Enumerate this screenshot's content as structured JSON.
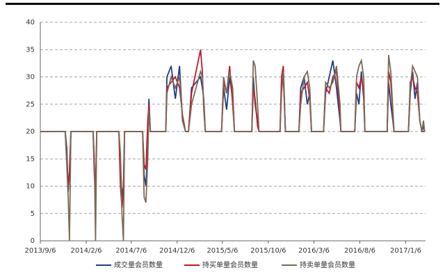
{
  "chart_data": {
    "type": "line",
    "x": [
      "2013/9/6",
      "2013/11/28",
      "2013/12/3",
      "2013/12/8",
      "2013/12/12",
      "2013/12/17",
      "2014/3/1",
      "2014/3/5",
      "2014/3/9",
      "2014/3/13",
      "2014/5/26",
      "2014/5/31",
      "2014/6/5",
      "2014/6/10",
      "2014/6/14",
      "2014/8/13",
      "2014/8/18",
      "2014/8/24",
      "2014/8/30",
      "2014/9/3",
      "2014/9/8",
      "2014/10/29",
      "2014/11/2",
      "2014/11/16",
      "2014/11/30",
      "2014/12/14",
      "2014/12/24",
      "2015/1/3",
      "2015/1/13",
      "2015/1/23",
      "2015/2/22",
      "2015/2/28",
      "2015/3/5",
      "2015/3/10",
      "2015/5/3",
      "2015/5/10",
      "2015/5/20",
      "2015/5/30",
      "2015/6/9",
      "2015/6/15",
      "2015/8/12",
      "2015/8/17",
      "2015/8/23",
      "2015/8/31",
      "2015/9/5",
      "2015/11/14",
      "2015/11/19",
      "2015/11/25",
      "2015/12/2",
      "2016/1/16",
      "2016/1/22",
      "2016/2/2",
      "2016/2/13",
      "2016/2/21",
      "2016/2/27",
      "2016/4/7",
      "2016/4/14",
      "2016/4/26",
      "2016/5/8",
      "2016/5/20",
      "2016/6/1",
      "2016/6/4",
      "2016/7/20",
      "2016/7/26",
      "2016/8/3",
      "2016/8/11",
      "2016/8/19",
      "2016/8/23",
      "2016/11/5",
      "2016/11/10",
      "2016/11/17",
      "2016/11/24",
      "2016/11/28",
      "2017/1/15",
      "2017/1/21",
      "2017/1/29",
      "2017/2/6",
      "2017/2/14",
      "2017/2/22",
      "2017/3/1",
      "2017/3/6",
      "2017/3/10"
    ],
    "series": [
      {
        "name": "成交量会员数量",
        "color": "#1f3f7f",
        "values": [
          20,
          20,
          17,
          9,
          13,
          20,
          20,
          14,
          7,
          20,
          20,
          14,
          8,
          10,
          20,
          20,
          12,
          10,
          18,
          26,
          20,
          20,
          30,
          32,
          26,
          32,
          22,
          20,
          20,
          28,
          30,
          28,
          26,
          20,
          20,
          28,
          24,
          30,
          26,
          20,
          20,
          30,
          25,
          22,
          20,
          20,
          28,
          30,
          20,
          20,
          28,
          30,
          25,
          27,
          20,
          20,
          27,
          30,
          33,
          28,
          22,
          20,
          20,
          27,
          25,
          31,
          26,
          20,
          20,
          29,
          25,
          22,
          20,
          20,
          27,
          31,
          26,
          29,
          22,
          20,
          21,
          20
        ]
      },
      {
        "name": "持买单量会员数量",
        "color": "#c0182c",
        "values": [
          20,
          20,
          15,
          10,
          12,
          20,
          20,
          12,
          8,
          20,
          20,
          10,
          6,
          9,
          20,
          20,
          14,
          13,
          22,
          25,
          20,
          20,
          28,
          29,
          30,
          28,
          23,
          20,
          20,
          27,
          35,
          31,
          24,
          20,
          20,
          29,
          27,
          32,
          25,
          20,
          20,
          28,
          26,
          21,
          20,
          20,
          30,
          32,
          20,
          20,
          27,
          28,
          29,
          26,
          20,
          20,
          28,
          27,
          30,
          31,
          23,
          20,
          20,
          29,
          28,
          30,
          27,
          20,
          20,
          31,
          29,
          23,
          20,
          20,
          29,
          30,
          28,
          27,
          22,
          20,
          20,
          20
        ]
      },
      {
        "name": "持卖单量会员数量",
        "color": "#7a6a55",
        "values": [
          20,
          20,
          14,
          8,
          0,
          20,
          20,
          15,
          0,
          20,
          20,
          16,
          5,
          0,
          20,
          20,
          8,
          7,
          15,
          24,
          20,
          20,
          27,
          30,
          28,
          30,
          22,
          20,
          20,
          25,
          31,
          30,
          25,
          20,
          20,
          30,
          27,
          31,
          28,
          20,
          20,
          33,
          32,
          25,
          20,
          20,
          27,
          31,
          20,
          20,
          25,
          30,
          31,
          28,
          20,
          20,
          29,
          28,
          29,
          32,
          25,
          20,
          20,
          30,
          32,
          33,
          30,
          20,
          20,
          34,
          31,
          24,
          20,
          20,
          28,
          32,
          31,
          30,
          22,
          20,
          22,
          20
        ]
      }
    ],
    "xlim": [
      "2013/9/6",
      "2017/3/13"
    ],
    "xticks": [
      "2013/9/6",
      "2014/2/6",
      "2014/7/6",
      "2014/12/6",
      "2015/5/6",
      "2015/10/6",
      "2016/3/6",
      "2016/8/6",
      "2017/1/6"
    ],
    "ylim": [
      0,
      40
    ],
    "yticks": [
      0,
      5,
      10,
      15,
      20,
      25,
      30,
      35,
      40
    ],
    "grid": true
  }
}
